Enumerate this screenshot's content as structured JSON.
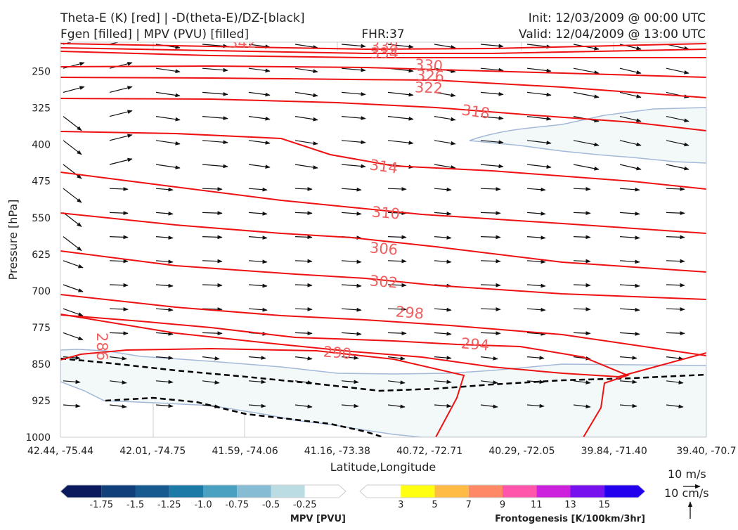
{
  "header": {
    "left_line1": "Theta-E (K) [red] | -D(theta-E)/DZ-[black]",
    "left_line2": "Fgen [filled] | MPV (PVU) [filled]",
    "center": "FHR:37",
    "right_line1": "Init: 12/03/2009 @ 00:00 UTC",
    "right_line2": "Valid: 12/04/2009 @ 13:00 UTC"
  },
  "chart_data": {
    "type": "cross-section",
    "xlabel": "Latitude,Longitude",
    "ylabel": "Pressure [hPa]",
    "x_ticks": [
      "42.44, -75.44",
      "42.01, -74.75",
      "41.59, -74.06",
      "41.16, -73.38",
      "40.72, -72.71",
      "40.29, -72.05",
      "39.84, -71.40",
      "39.40, -70.7"
    ],
    "y_ticks": [
      250,
      325,
      400,
      475,
      550,
      625,
      700,
      775,
      850,
      925,
      1000
    ],
    "ylim": [
      1000,
      190
    ],
    "theta_e_contour_labels": [
      {
        "value": "342"
      },
      {
        "value": "338"
      },
      {
        "value": "334"
      },
      {
        "value": "330"
      },
      {
        "value": "326"
      },
      {
        "value": "322"
      },
      {
        "value": "318"
      },
      {
        "value": "314"
      },
      {
        "value": "310"
      },
      {
        "value": "306"
      },
      {
        "value": "302"
      },
      {
        "value": "298"
      },
      {
        "value": "294"
      },
      {
        "value": "290"
      },
      {
        "value": "286"
      }
    ],
    "colors": {
      "theta_e": "#ee1111",
      "mpv_fill": "#f3f9f9",
      "mpv_edge": "#a4b8d8",
      "stability": "#000000"
    }
  },
  "mpv_colorbar": {
    "title": "MPV [PVU]",
    "tick_labels": [
      "-1.75",
      "-1.5",
      "-1.25",
      "-1.0",
      "-0.75",
      "-0.5",
      "-0.25"
    ],
    "colors": [
      "#0a1a5c",
      "#113f7a",
      "#165a90",
      "#1b7aa6",
      "#4aa0c0",
      "#86bcd4",
      "#bcdce4",
      "#ffffff"
    ]
  },
  "fgen_colorbar": {
    "title": "Frontogenesis [K/100km/3hr]",
    "tick_labels": [
      "3",
      "5",
      "7",
      "9",
      "11",
      "13",
      "15"
    ],
    "colors": [
      "#ffffff",
      "#ffff11",
      "#ffbb44",
      "#ff8866",
      "#ff55aa",
      "#cc22dd",
      "#7711ee",
      "#2200ee"
    ]
  },
  "wind_legend": {
    "horizontal": "10 m/s",
    "vertical": "10 cm/s"
  }
}
